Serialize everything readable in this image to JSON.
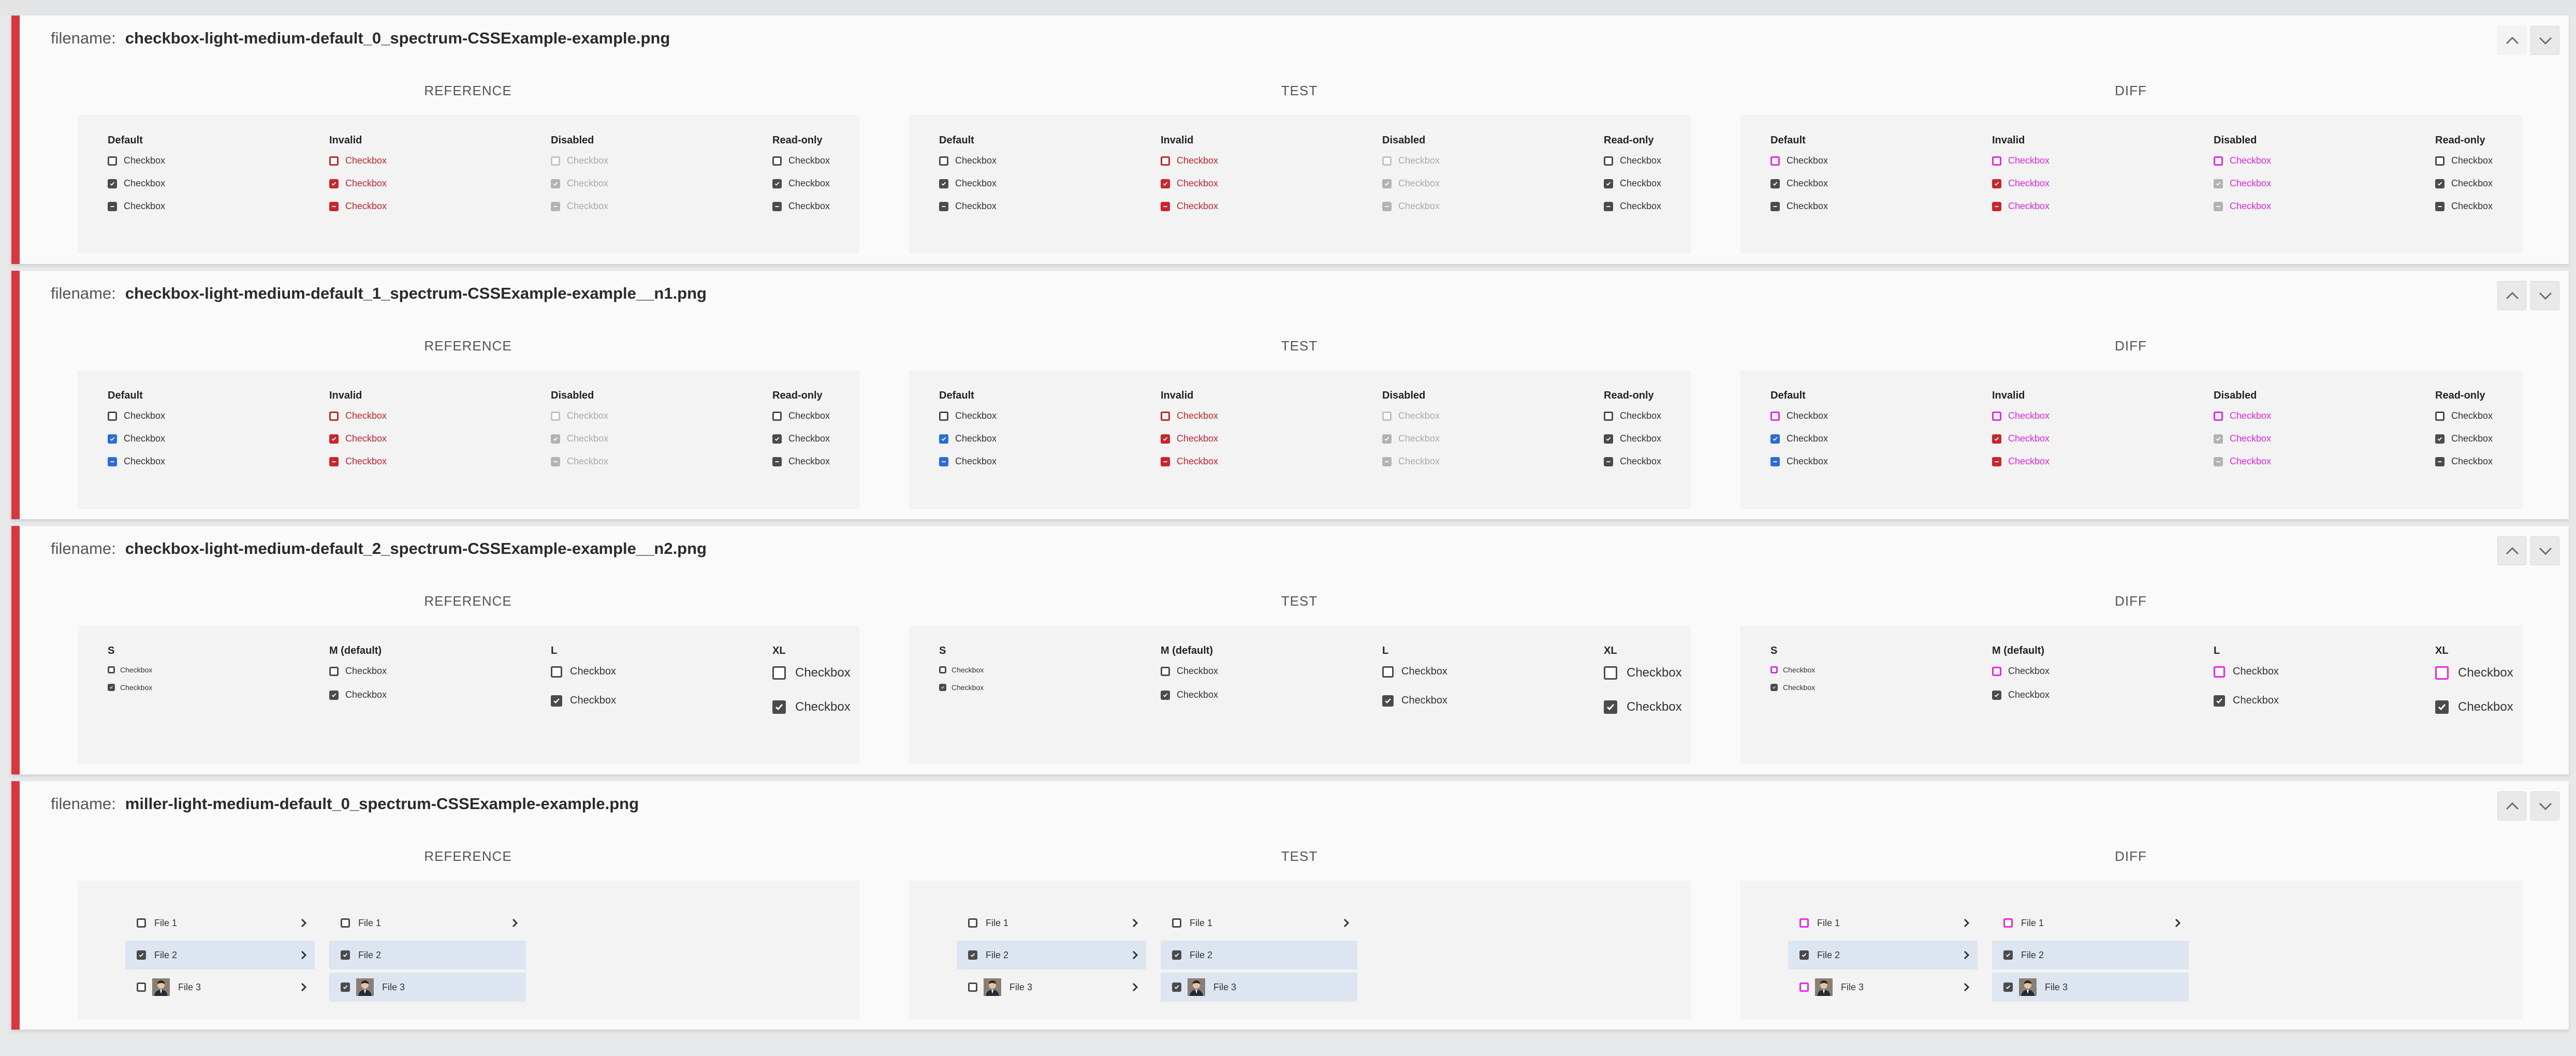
{
  "labels": {
    "filename": "filename:",
    "columns": [
      "REFERENCE",
      "TEST",
      "DIFF"
    ]
  },
  "colors": {
    "accent": "#d7373f",
    "invalid": "#c9252d",
    "diff": "#e629e6",
    "selected_row": "#dde5f0",
    "blue": "#2b6cd9"
  },
  "icons": {
    "up": "chevron-up-icon",
    "down": "chevron-down-icon",
    "check": "checkmark-icon",
    "dash": "dash-icon",
    "row_chevron": "chevron-right-icon",
    "avatar": "avatar-icon"
  },
  "sections": [
    {
      "filename": "checkbox-light-medium-default_0_spectrum-CSSExample-example.png",
      "up_disabled": true,
      "groups": [
        {
          "title": "Default",
          "items": [
            {
              "label": "Checkbox",
              "state": "empty"
            },
            {
              "label": "Checkbox",
              "state": "checked"
            },
            {
              "label": "Checkbox",
              "state": "indeterminate"
            }
          ]
        },
        {
          "title": "Invalid",
          "items": [
            {
              "label": "Checkbox",
              "state": "empty"
            },
            {
              "label": "Checkbox",
              "state": "checked"
            },
            {
              "label": "Checkbox",
              "state": "indeterminate"
            }
          ]
        },
        {
          "title": "Disabled",
          "items": [
            {
              "label": "Checkbox",
              "state": "empty"
            },
            {
              "label": "Checkbox",
              "state": "checked"
            },
            {
              "label": "Checkbox",
              "state": "indeterminate"
            }
          ]
        },
        {
          "title": "Read-only",
          "items": [
            {
              "label": "Checkbox",
              "state": "empty"
            },
            {
              "label": "Checkbox",
              "state": "checked"
            },
            {
              "label": "Checkbox",
              "state": "indeterminate"
            }
          ]
        }
      ]
    },
    {
      "filename": "checkbox-light-medium-default_1_spectrum-CSSExample-example__n1.png",
      "up_disabled": false,
      "groups": [
        {
          "title": "Default",
          "items": [
            {
              "label": "Checkbox",
              "state": "empty"
            },
            {
              "label": "Checkbox",
              "state": "checked"
            },
            {
              "label": "Checkbox",
              "state": "indeterminate"
            }
          ]
        },
        {
          "title": "Invalid",
          "items": [
            {
              "label": "Checkbox",
              "state": "empty"
            },
            {
              "label": "Checkbox",
              "state": "checked"
            },
            {
              "label": "Checkbox",
              "state": "indeterminate"
            }
          ]
        },
        {
          "title": "Disabled",
          "items": [
            {
              "label": "Checkbox",
              "state": "empty"
            },
            {
              "label": "Checkbox",
              "state": "checked"
            },
            {
              "label": "Checkbox",
              "state": "indeterminate"
            }
          ]
        },
        {
          "title": "Read-only",
          "items": [
            {
              "label": "Checkbox",
              "state": "empty"
            },
            {
              "label": "Checkbox",
              "state": "checked"
            },
            {
              "label": "Checkbox",
              "state": "indeterminate"
            }
          ]
        }
      ]
    },
    {
      "filename": "checkbox-light-medium-default_2_spectrum-CSSExample-example__n2.png",
      "up_disabled": false,
      "groups": [
        {
          "title": "S",
          "items": [
            {
              "label": "Checkbox",
              "state": "empty"
            },
            {
              "label": "Checkbox",
              "state": "checked"
            }
          ]
        },
        {
          "title": "M (default)",
          "items": [
            {
              "label": "Checkbox",
              "state": "empty"
            },
            {
              "label": "Checkbox",
              "state": "checked"
            }
          ]
        },
        {
          "title": "L",
          "items": [
            {
              "label": "Checkbox",
              "state": "empty"
            },
            {
              "label": "Checkbox",
              "state": "checked"
            }
          ]
        },
        {
          "title": "XL",
          "items": [
            {
              "label": "Checkbox",
              "state": "empty"
            },
            {
              "label": "Checkbox",
              "state": "checked"
            }
          ]
        }
      ]
    },
    {
      "filename": "miller-light-medium-default_0_spectrum-CSSExample-example.png",
      "up_disabled": false,
      "miller": {
        "columns": [
          {
            "rows": [
              {
                "label": "File 1",
                "checked": false,
                "selected": false,
                "avatar": false
              },
              {
                "label": "File 2",
                "checked": true,
                "selected": true,
                "avatar": false
              },
              {
                "label": "File 3",
                "checked": false,
                "selected": false,
                "avatar": true
              }
            ]
          },
          {
            "rows": [
              {
                "label": "File 1",
                "checked": false,
                "selected": false,
                "avatar": false
              },
              {
                "label": "File 2",
                "checked": true,
                "selected": true,
                "avatar": false
              },
              {
                "label": "File 3",
                "checked": true,
                "selected": true,
                "avatar": true
              }
            ]
          }
        ]
      }
    }
  ]
}
